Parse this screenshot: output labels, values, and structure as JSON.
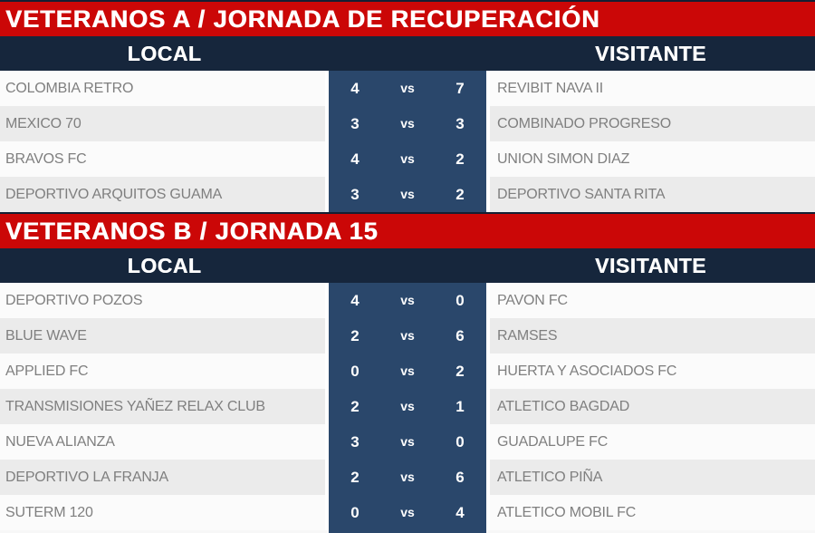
{
  "colors": {
    "accent_red": "#cb0707",
    "header_navy": "#16263c",
    "score_navy": "#2a476b",
    "row_light": "#fbfbfb",
    "row_gray": "#ebebeb",
    "team_text": "#7f7f7f"
  },
  "sections": [
    {
      "title": "VETERANOS A / JORNADA DE RECUPERACIÓN",
      "local_header": "LOCAL",
      "visitante_header": "VISITANTE",
      "matches": [
        {
          "local": "COLOMBIA RETRO",
          "local_score": "4",
          "vs_label": "vs",
          "visitor_score": "7",
          "visitor": "REVIBIT NAVA II"
        },
        {
          "local": "MEXICO 70",
          "local_score": "3",
          "vs_label": "vs",
          "visitor_score": "3",
          "visitor": "COMBINADO PROGRESO"
        },
        {
          "local": "BRAVOS FC",
          "local_score": "4",
          "vs_label": "vs",
          "visitor_score": "2",
          "visitor": "UNION SIMON DIAZ"
        },
        {
          "local": "DEPORTIVO ARQUITOS GUAMA",
          "local_score": "3",
          "vs_label": "vs",
          "visitor_score": "2",
          "visitor": "DEPORTIVO SANTA RITA"
        }
      ]
    },
    {
      "title": "VETERANOS B / JORNADA 15",
      "local_header": "LOCAL",
      "visitante_header": "VISITANTE",
      "matches": [
        {
          "local": "DEPORTIVO POZOS",
          "local_score": "4",
          "vs_label": "vs",
          "visitor_score": "0",
          "visitor": "PAVON FC"
        },
        {
          "local": "BLUE WAVE",
          "local_score": "2",
          "vs_label": "vs",
          "visitor_score": "6",
          "visitor": "RAMSES"
        },
        {
          "local": "APPLIED FC",
          "local_score": "0",
          "vs_label": "vs",
          "visitor_score": "2",
          "visitor": "HUERTA Y ASOCIADOS FC"
        },
        {
          "local": "TRANSMISIONES YAÑEZ RELAX CLUB",
          "local_score": "2",
          "vs_label": "vs",
          "visitor_score": "1",
          "visitor": "ATLETICO BAGDAD"
        },
        {
          "local": "NUEVA ALIANZA",
          "local_score": "3",
          "vs_label": "vs",
          "visitor_score": "0",
          "visitor": "GUADALUPE FC"
        },
        {
          "local": "DEPORTIVO LA FRANJA",
          "local_score": "2",
          "vs_label": "vs",
          "visitor_score": "6",
          "visitor": "ATLETICO PIÑA"
        },
        {
          "local": "SUTERM 120",
          "local_score": "0",
          "vs_label": "vs",
          "visitor_score": "4",
          "visitor": "ATLETICO MOBIL FC"
        }
      ]
    }
  ]
}
